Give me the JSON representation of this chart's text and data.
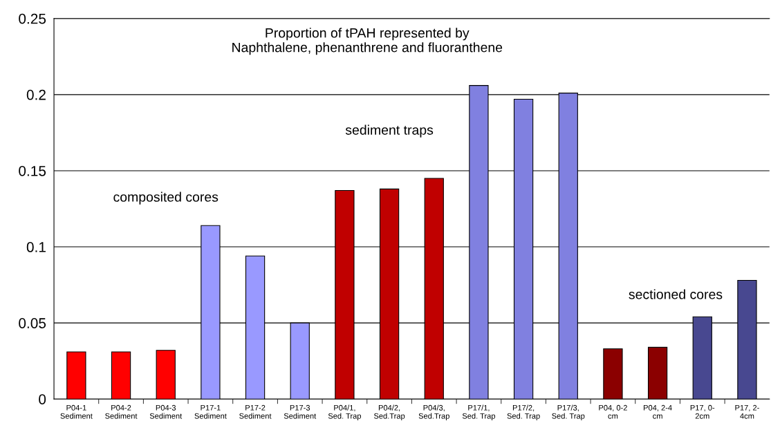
{
  "chart_data": {
    "type": "bar",
    "title": "Proportion of tPAH represented by\nNaphthalene, phenanthrene and fluoranthene",
    "categories": [
      "P04-1\nSediment",
      "P04-2\nSediment",
      "P04-3\nSediment",
      "P17-1\nSediment",
      "P17-2\nSediment",
      "P17-3\nSediment",
      "P04/1,\nSed. Trap",
      "P04/2,\nSed.Trap",
      "P04/3,\nSed.Trap",
      "P17/1,\nSed. Trap",
      "P17/2,\nSed. Trap",
      "P17/3,\nSed. Trap",
      "P04, 0-2\ncm",
      "P04, 2-4\ncm",
      "P17, 0-\n2cm",
      "P17, 2-\n4cm"
    ],
    "values": [
      0.031,
      0.031,
      0.032,
      0.114,
      0.094,
      0.05,
      0.137,
      0.138,
      0.145,
      0.206,
      0.197,
      0.201,
      0.033,
      0.034,
      0.054,
      0.078
    ],
    "colors": [
      "#ff0000",
      "#ff0000",
      "#ff0000",
      "#9999ff",
      "#9999ff",
      "#9999ff",
      "#c00000",
      "#c00000",
      "#c00000",
      "#8080e0",
      "#8080e0",
      "#8080e0",
      "#8b0000",
      "#8b0000",
      "#484890",
      "#484890"
    ],
    "annotations": [
      "composited cores",
      "sediment traps",
      "sectioned cores"
    ],
    "ylim": [
      0,
      0.25
    ],
    "yticks": [
      0,
      0.05,
      0.1,
      0.15,
      0.2,
      0.25
    ],
    "grid": "y"
  }
}
